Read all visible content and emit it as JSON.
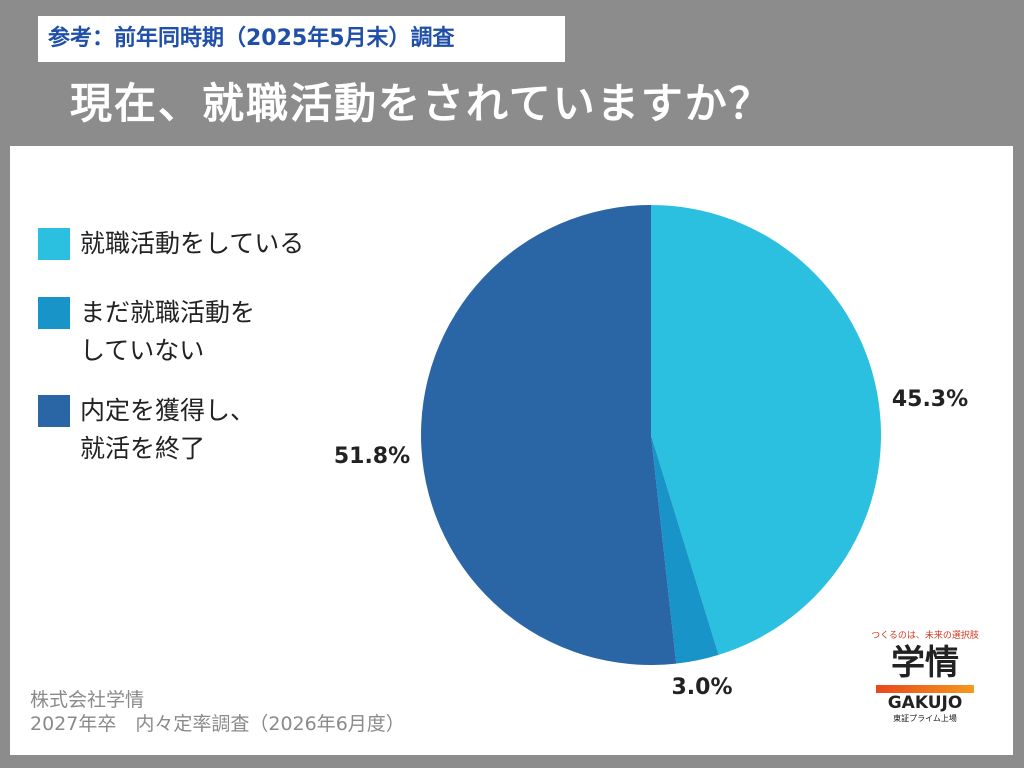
{
  "header": {
    "note": "参考：前年同時期（2025年5月末）調査",
    "title": "現在、就職活動をされていますか？"
  },
  "chart_data": {
    "type": "pie",
    "categories": [
      "就職活動をしている",
      "まだ就職活動を\nしていない",
      "内定を獲得し、\n就活を終了"
    ],
    "values": [
      45.3,
      3.0,
      51.8
    ],
    "value_labels": [
      "45.3%",
      "3.0%",
      "51.8%"
    ],
    "colors": [
      "#2cc0e0",
      "#1894c8",
      "#2a65a6"
    ]
  },
  "footer": {
    "company": "株式会社学情",
    "survey": "2027年卒　内々定率調査（2026年6月度）"
  },
  "logo": {
    "tagline": "つくるのは、未来の選択肢",
    "name": "学情",
    "roman": "GAKUJO",
    "listing": "東証プライム上場"
  }
}
